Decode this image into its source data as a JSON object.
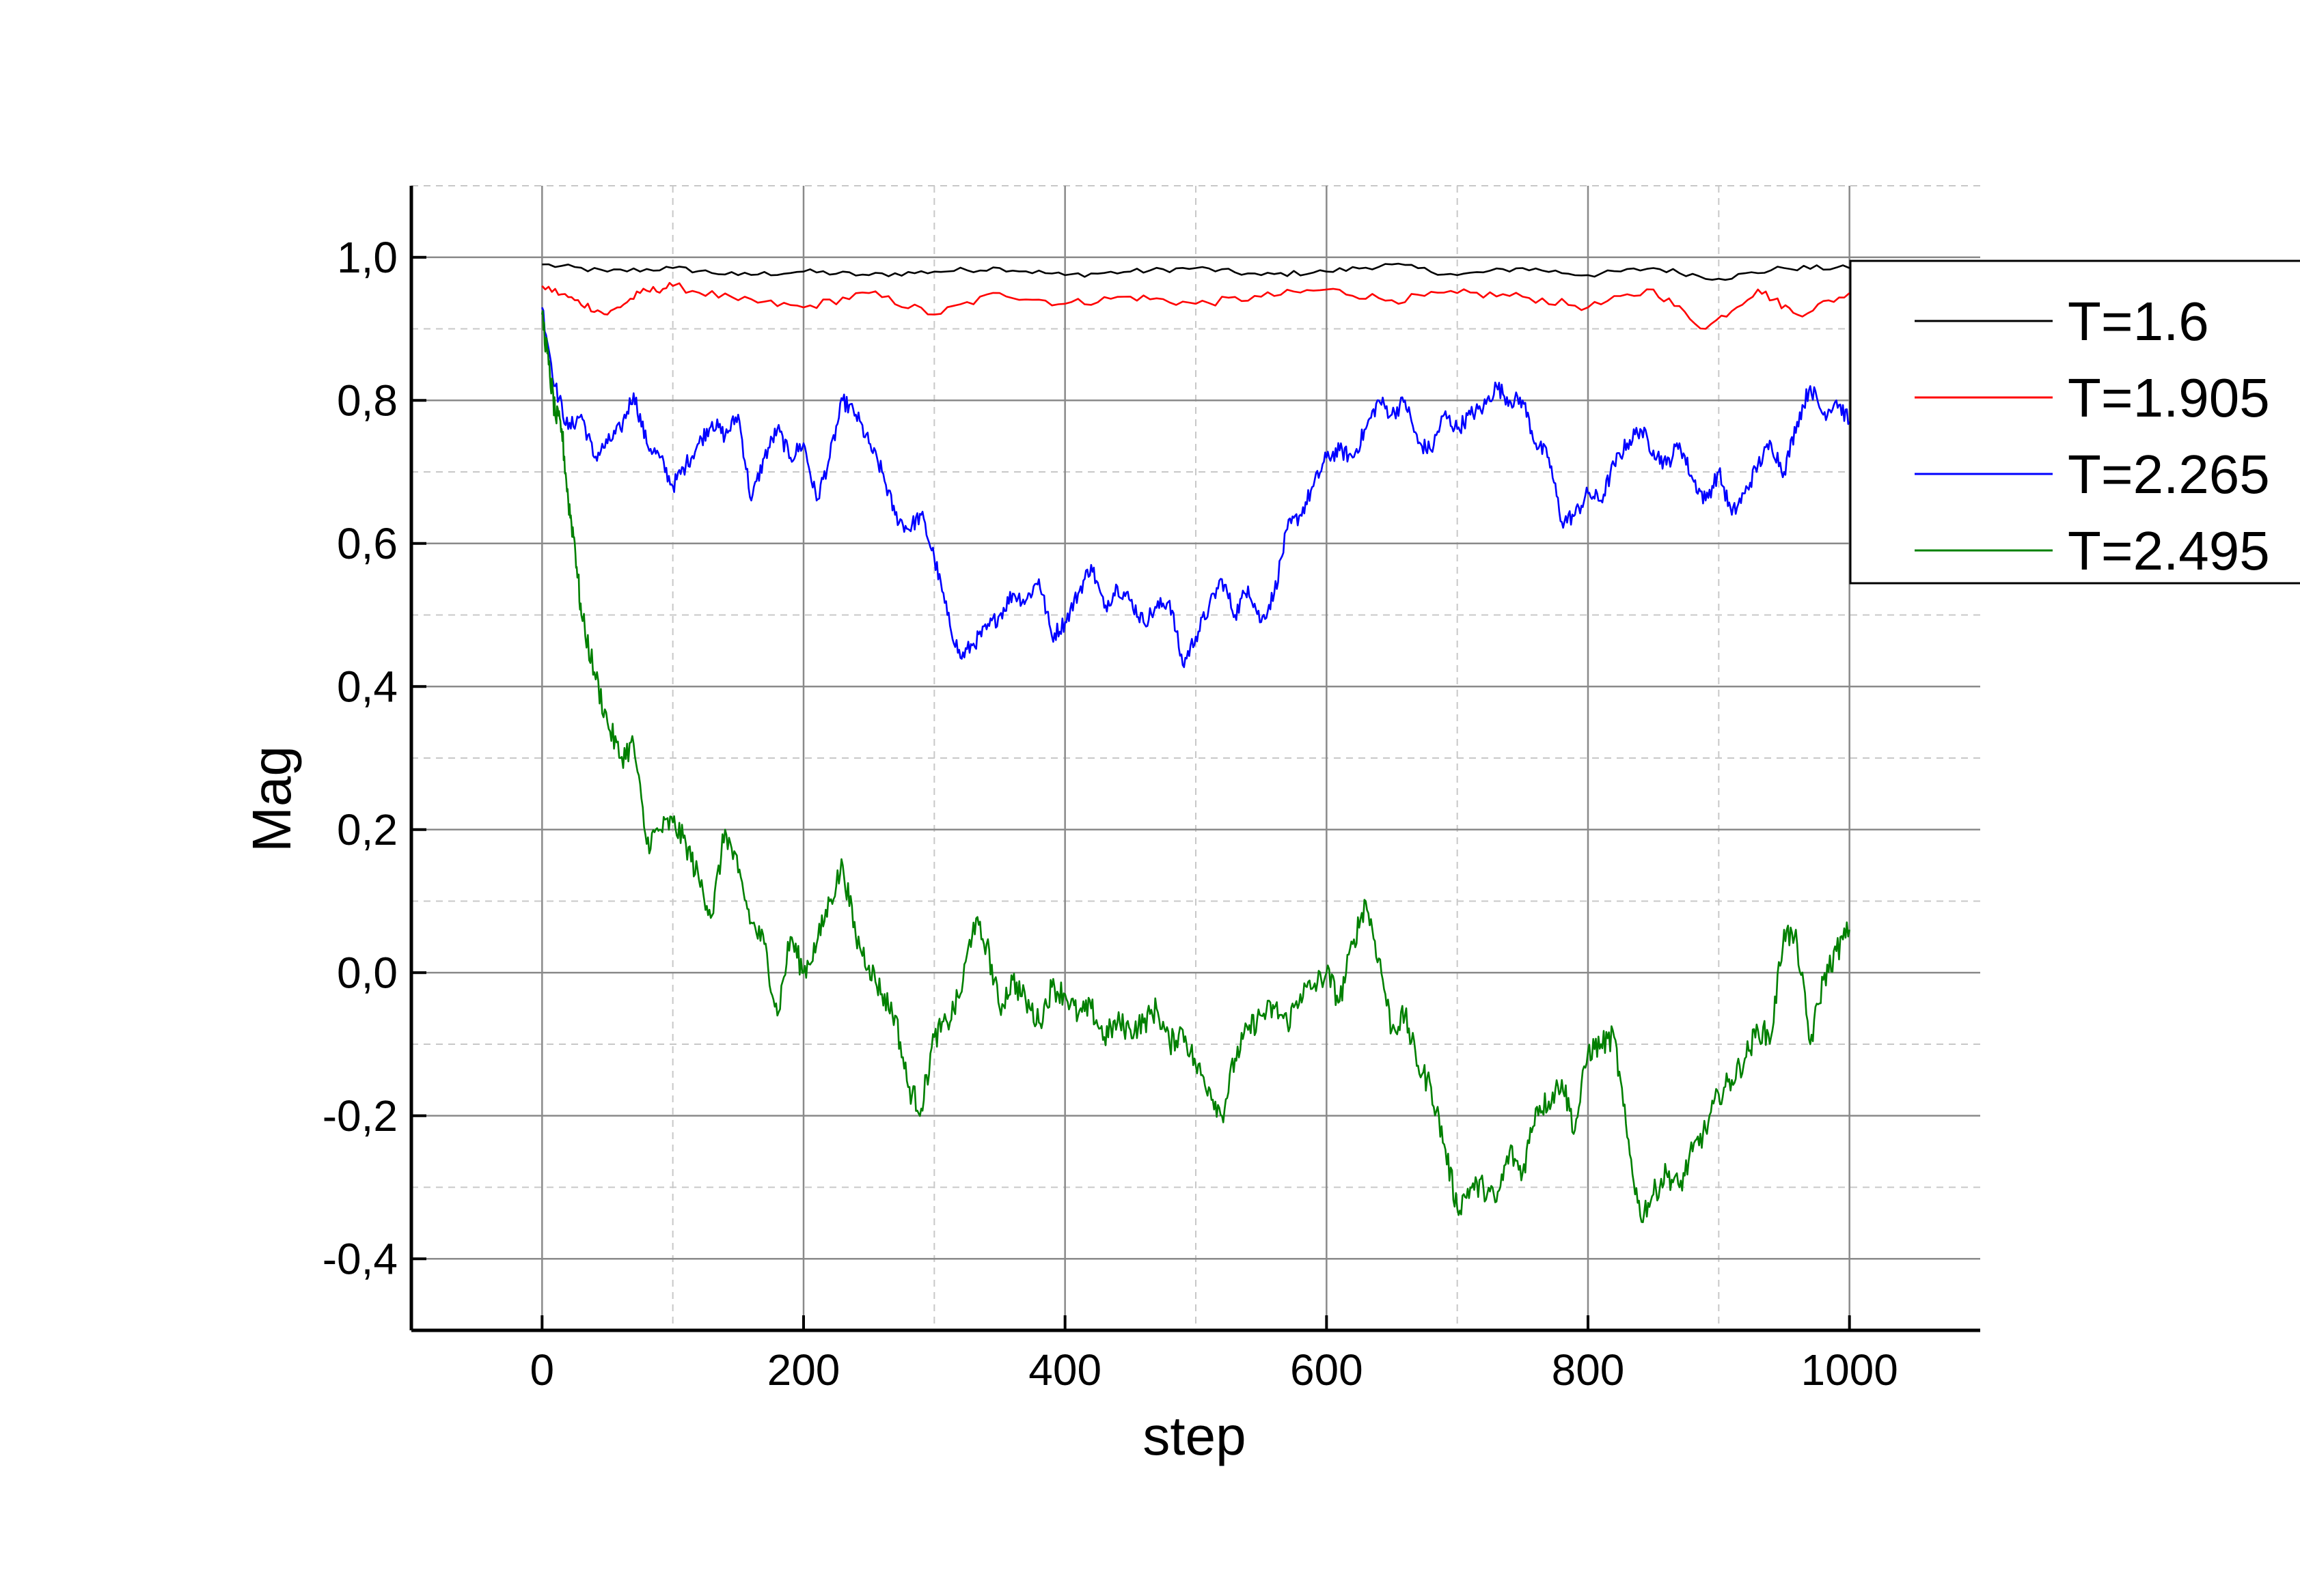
{
  "chart_data": {
    "type": "line",
    "xlabel": "step",
    "ylabel": "Mag",
    "xlim": [
      -100,
      1100
    ],
    "ylim": [
      -0.5,
      1.1
    ],
    "xticks": [
      0,
      200,
      400,
      600,
      800,
      1000
    ],
    "yticks": [
      -0.4,
      -0.2,
      0.0,
      0.2,
      0.4,
      0.6,
      0.8,
      1.0
    ],
    "xtick_labels": [
      "0",
      "200",
      "400",
      "600",
      "800",
      "1000"
    ],
    "ytick_labels": [
      "-0,4",
      "-0,2",
      "0,0",
      "0,2",
      "0,4",
      "0,6",
      "0,8",
      "1,0"
    ],
    "grid": true,
    "legend_position": "top-right",
    "series": [
      {
        "name": "T=1.6",
        "color": "#000000",
        "x": [
          0,
          50,
          100,
          150,
          200,
          250,
          300,
          350,
          400,
          450,
          500,
          550,
          600,
          650,
          700,
          750,
          800,
          850,
          900,
          950,
          1000
        ],
        "y": [
          0.99,
          0.98,
          0.985,
          0.975,
          0.98,
          0.975,
          0.98,
          0.985,
          0.975,
          0.98,
          0.985,
          0.975,
          0.98,
          0.99,
          0.975,
          0.985,
          0.975,
          0.985,
          0.97,
          0.985,
          0.985
        ]
      },
      {
        "name": "T=1.905",
        "color": "#ff0000",
        "x": [
          0,
          25,
          50,
          75,
          100,
          150,
          200,
          250,
          300,
          350,
          400,
          450,
          500,
          550,
          600,
          650,
          700,
          750,
          800,
          850,
          890,
          930,
          960,
          1000
        ],
        "y": [
          0.96,
          0.94,
          0.92,
          0.95,
          0.96,
          0.94,
          0.93,
          0.95,
          0.92,
          0.95,
          0.935,
          0.945,
          0.935,
          0.945,
          0.955,
          0.94,
          0.95,
          0.945,
          0.93,
          0.955,
          0.9,
          0.955,
          0.92,
          0.95
        ]
      },
      {
        "name": "T=2.265",
        "color": "#0000ff",
        "x": [
          0,
          10,
          20,
          30,
          40,
          50,
          60,
          70,
          80,
          90,
          100,
          110,
          120,
          130,
          140,
          150,
          160,
          170,
          180,
          190,
          200,
          210,
          220,
          230,
          240,
          250,
          260,
          270,
          280,
          290,
          300,
          310,
          320,
          330,
          340,
          350,
          360,
          370,
          380,
          390,
          400,
          410,
          420,
          430,
          440,
          450,
          460,
          470,
          480,
          490,
          500,
          510,
          520,
          530,
          540,
          550,
          560,
          570,
          580,
          590,
          600,
          610,
          620,
          630,
          640,
          650,
          660,
          670,
          680,
          690,
          700,
          710,
          720,
          730,
          740,
          750,
          760,
          770,
          780,
          790,
          800,
          810,
          820,
          830,
          840,
          850,
          860,
          870,
          880,
          890,
          900,
          910,
          920,
          930,
          940,
          950,
          960,
          970,
          980,
          990,
          1000
        ],
        "y": [
          0.93,
          0.82,
          0.76,
          0.78,
          0.72,
          0.74,
          0.76,
          0.81,
          0.74,
          0.72,
          0.68,
          0.71,
          0.74,
          0.77,
          0.75,
          0.78,
          0.66,
          0.72,
          0.76,
          0.72,
          0.74,
          0.66,
          0.72,
          0.8,
          0.78,
          0.74,
          0.7,
          0.64,
          0.62,
          0.64,
          0.58,
          0.5,
          0.44,
          0.46,
          0.48,
          0.5,
          0.53,
          0.52,
          0.55,
          0.47,
          0.49,
          0.53,
          0.57,
          0.51,
          0.54,
          0.52,
          0.49,
          0.51,
          0.52,
          0.43,
          0.47,
          0.51,
          0.55,
          0.5,
          0.54,
          0.49,
          0.53,
          0.62,
          0.64,
          0.68,
          0.72,
          0.73,
          0.72,
          0.76,
          0.8,
          0.78,
          0.8,
          0.74,
          0.73,
          0.78,
          0.76,
          0.78,
          0.79,
          0.82,
          0.8,
          0.8,
          0.74,
          0.72,
          0.63,
          0.64,
          0.67,
          0.66,
          0.71,
          0.74,
          0.76,
          0.73,
          0.71,
          0.74,
          0.69,
          0.66,
          0.7,
          0.64,
          0.67,
          0.71,
          0.74,
          0.7,
          0.77,
          0.82,
          0.78,
          0.8,
          0.77
        ]
      },
      {
        "name": "T=2.495",
        "color": "#008000",
        "x": [
          0,
          5,
          10,
          15,
          20,
          25,
          30,
          40,
          50,
          60,
          70,
          80,
          90,
          100,
          110,
          120,
          130,
          140,
          150,
          160,
          170,
          180,
          190,
          200,
          210,
          220,
          230,
          240,
          250,
          260,
          270,
          280,
          290,
          300,
          310,
          320,
          330,
          340,
          350,
          360,
          370,
          380,
          390,
          400,
          410,
          420,
          430,
          440,
          450,
          460,
          470,
          480,
          490,
          500,
          510,
          520,
          530,
          540,
          550,
          560,
          570,
          580,
          590,
          600,
          610,
          620,
          630,
          640,
          650,
          660,
          670,
          680,
          690,
          700,
          710,
          720,
          730,
          740,
          750,
          760,
          770,
          780,
          790,
          800,
          810,
          820,
          830,
          840,
          850,
          860,
          870,
          880,
          890,
          900,
          910,
          920,
          930,
          940,
          950,
          960,
          970,
          980,
          990,
          1000
        ],
        "y": [
          0.92,
          0.85,
          0.78,
          0.76,
          0.66,
          0.6,
          0.5,
          0.42,
          0.35,
          0.3,
          0.32,
          0.18,
          0.2,
          0.21,
          0.18,
          0.13,
          0.08,
          0.2,
          0.14,
          0.07,
          0.04,
          -0.06,
          0.05,
          0.0,
          0.04,
          0.1,
          0.15,
          0.05,
          0.01,
          -0.03,
          -0.06,
          -0.16,
          -0.19,
          -0.09,
          -0.07,
          -0.03,
          0.07,
          0.04,
          -0.05,
          -0.01,
          -0.04,
          -0.07,
          -0.02,
          -0.03,
          -0.06,
          -0.05,
          -0.09,
          -0.07,
          -0.08,
          -0.07,
          -0.05,
          -0.1,
          -0.08,
          -0.13,
          -0.16,
          -0.2,
          -0.12,
          -0.08,
          -0.06,
          -0.05,
          -0.07,
          -0.03,
          -0.02,
          0.0,
          -0.04,
          0.04,
          0.1,
          0.02,
          -0.08,
          -0.06,
          -0.13,
          -0.16,
          -0.24,
          -0.33,
          -0.3,
          -0.3,
          -0.32,
          -0.25,
          -0.28,
          -0.19,
          -0.18,
          -0.15,
          -0.22,
          -0.11,
          -0.1,
          -0.09,
          -0.23,
          -0.34,
          -0.31,
          -0.28,
          -0.3,
          -0.25,
          -0.22,
          -0.17,
          -0.15,
          -0.12,
          -0.08,
          -0.09,
          0.06,
          0.04,
          -0.1,
          -0.01,
          0.03,
          0.06
        ]
      }
    ]
  }
}
